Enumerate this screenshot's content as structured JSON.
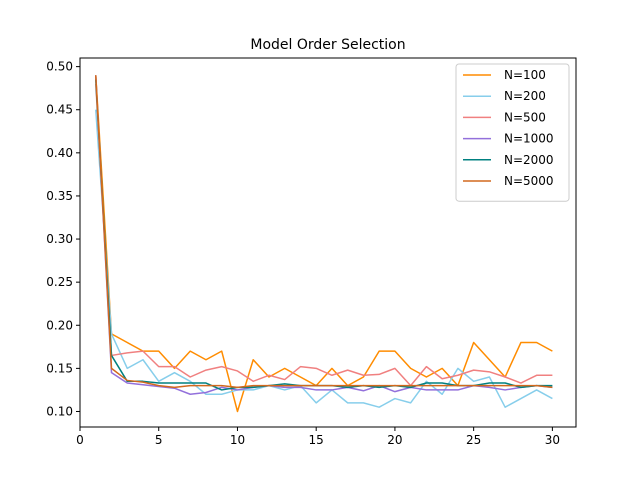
{
  "chart_data": {
    "type": "line",
    "title": "Model Order Selection",
    "xlabel": "",
    "ylabel": "",
    "xlim": [
      0,
      31.5
    ],
    "ylim": [
      0.082,
      0.51
    ],
    "xticks": [
      0,
      5,
      10,
      15,
      20,
      25,
      30
    ],
    "yticks": [
      0.1,
      0.15,
      0.2,
      0.25,
      0.3,
      0.35,
      0.4,
      0.45,
      0.5
    ],
    "ytick_labels": [
      "0.10",
      "0.15",
      "0.20",
      "0.25",
      "0.30",
      "0.35",
      "0.40",
      "0.45",
      "0.50"
    ],
    "grid": false,
    "legend": "top-right",
    "x": [
      1,
      2,
      3,
      4,
      5,
      6,
      7,
      8,
      9,
      10,
      11,
      12,
      13,
      14,
      15,
      16,
      17,
      18,
      19,
      20,
      21,
      22,
      23,
      24,
      25,
      26,
      27,
      28,
      29,
      30
    ],
    "series": [
      {
        "name": "N=100",
        "color": "#ff8c00",
        "values": [
          0.49,
          0.19,
          0.18,
          0.17,
          0.17,
          0.15,
          0.17,
          0.16,
          0.17,
          0.1,
          0.16,
          0.14,
          0.15,
          0.14,
          0.13,
          0.15,
          0.13,
          0.14,
          0.17,
          0.17,
          0.15,
          0.14,
          0.15,
          0.13,
          0.18,
          0.16,
          0.14,
          0.18,
          0.18,
          0.17
        ]
      },
      {
        "name": "N=200",
        "color": "#87ceeb",
        "values": [
          0.45,
          0.19,
          0.15,
          0.16,
          0.135,
          0.145,
          0.135,
          0.12,
          0.12,
          0.125,
          0.125,
          0.13,
          0.125,
          0.13,
          0.11,
          0.125,
          0.11,
          0.11,
          0.105,
          0.115,
          0.11,
          0.135,
          0.12,
          0.15,
          0.135,
          0.14,
          0.105,
          0.115,
          0.125,
          0.115
        ]
      },
      {
        "name": "N=500",
        "color": "#f08080",
        "values": [
          0.48,
          0.165,
          0.168,
          0.17,
          0.152,
          0.152,
          0.14,
          0.148,
          0.152,
          0.147,
          0.135,
          0.142,
          0.137,
          0.152,
          0.15,
          0.142,
          0.148,
          0.142,
          0.143,
          0.15,
          0.13,
          0.152,
          0.138,
          0.142,
          0.148,
          0.146,
          0.14,
          0.133,
          0.142,
          0.142
        ]
      },
      {
        "name": "N=1000",
        "color": "#9370db",
        "values": [
          0.49,
          0.145,
          0.133,
          0.131,
          0.129,
          0.127,
          0.12,
          0.122,
          0.128,
          0.125,
          0.128,
          0.13,
          0.128,
          0.128,
          0.125,
          0.125,
          0.128,
          0.124,
          0.13,
          0.123,
          0.128,
          0.125,
          0.125,
          0.125,
          0.13,
          0.128,
          0.125,
          0.128,
          0.13,
          0.128
        ]
      },
      {
        "name": "N=2000",
        "color": "#008080",
        "values": [
          0.485,
          0.165,
          0.135,
          0.135,
          0.133,
          0.133,
          0.133,
          0.133,
          0.125,
          0.128,
          0.128,
          0.13,
          0.132,
          0.13,
          0.13,
          0.13,
          0.128,
          0.13,
          0.128,
          0.13,
          0.128,
          0.133,
          0.133,
          0.13,
          0.13,
          0.133,
          0.133,
          0.128,
          0.13,
          0.13
        ]
      },
      {
        "name": "N=5000",
        "color": "#d2691e",
        "values": [
          0.49,
          0.15,
          0.136,
          0.134,
          0.13,
          0.128,
          0.13,
          0.13,
          0.13,
          0.128,
          0.13,
          0.13,
          0.13,
          0.13,
          0.13,
          0.13,
          0.13,
          0.13,
          0.13,
          0.13,
          0.13,
          0.13,
          0.13,
          0.13,
          0.13,
          0.13,
          0.13,
          0.13,
          0.13,
          0.128
        ]
      }
    ]
  }
}
